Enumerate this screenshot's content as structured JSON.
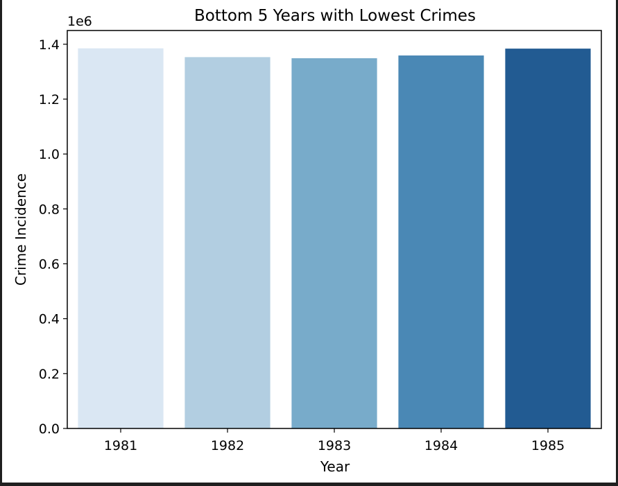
{
  "chart_data": {
    "type": "bar",
    "title": "Bottom 5 Years with Lowest Crimes",
    "xlabel": "Year",
    "ylabel": "Crime Incidence",
    "y_offset_label": "1e6",
    "y_multiplier": 1000000,
    "categories": [
      "1981",
      "1982",
      "1983",
      "1984",
      "1985"
    ],
    "values": [
      1385000,
      1353000,
      1349000,
      1359000,
      1384000
    ],
    "ylim": [
      0,
      1450000
    ],
    "yticks": [
      0,
      200000,
      400000,
      600000,
      800000,
      1000000,
      1200000,
      1400000
    ],
    "ytick_labels": [
      "0.0",
      "0.2",
      "0.4",
      "0.6",
      "0.8",
      "1.0",
      "1.2",
      "1.4"
    ],
    "grid": false,
    "legend": "none",
    "colors": [
      "#dae7f3",
      "#b2cee1",
      "#78abca",
      "#4a88b5",
      "#225b92"
    ]
  }
}
